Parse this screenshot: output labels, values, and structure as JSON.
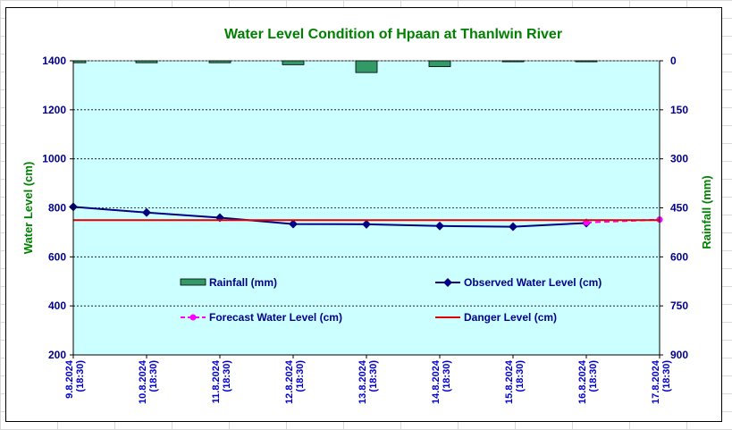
{
  "chart_data": {
    "type": "line",
    "title": "Water Level Condition of Hpaan at Thanlwin River",
    "ylabel": "Water Level (cm)",
    "y2label": "Rainfall (mm)",
    "ylim": [
      200,
      1400
    ],
    "y2lim": [
      0,
      900
    ],
    "y2_inverted": true,
    "yticks": [
      "200",
      "400",
      "600",
      "800",
      "1000",
      "1200",
      "1400"
    ],
    "y2ticks": [
      "0",
      "150",
      "300",
      "450",
      "600",
      "750",
      "900"
    ],
    "categories": [
      [
        "9.8.2024",
        "(18:30)"
      ],
      [
        "10.8.2024",
        "(18:30)"
      ],
      [
        "11.8.2024",
        "(18:30)"
      ],
      [
        "12.8.2024",
        "(18:30)"
      ],
      [
        "13.8.2024",
        "(18:30)"
      ],
      [
        "14.8.2024",
        "(18:30)"
      ],
      [
        "15.8.2024",
        "(18:30)"
      ],
      [
        "16.8.2024",
        "(18:30)"
      ],
      [
        "17.8.2024",
        "(18:30)"
      ]
    ],
    "series": [
      {
        "name": "Rainfall (mm)",
        "kind": "bar",
        "axis": "right",
        "color": "#339966",
        "values": [
          6,
          6,
          6,
          12,
          36,
          18,
          3,
          3,
          null
        ]
      },
      {
        "name": "Observed Water Level (cm)",
        "kind": "line",
        "axis": "left",
        "color": "#000080",
        "values": [
          804,
          781,
          760,
          734,
          733,
          726,
          723,
          738,
          null
        ]
      },
      {
        "name": "Forecast Water Level (cm)",
        "kind": "line-dashed",
        "axis": "left",
        "color": "#ff00ff",
        "values": [
          null,
          null,
          null,
          null,
          null,
          null,
          null,
          740,
          752
        ]
      },
      {
        "name": "Danger Level (cm)",
        "kind": "hline",
        "axis": "left",
        "color": "#e00000",
        "value": 750
      }
    ],
    "grid": true,
    "plot_background": "#ccffff",
    "legend_placement": "inside-lower"
  }
}
